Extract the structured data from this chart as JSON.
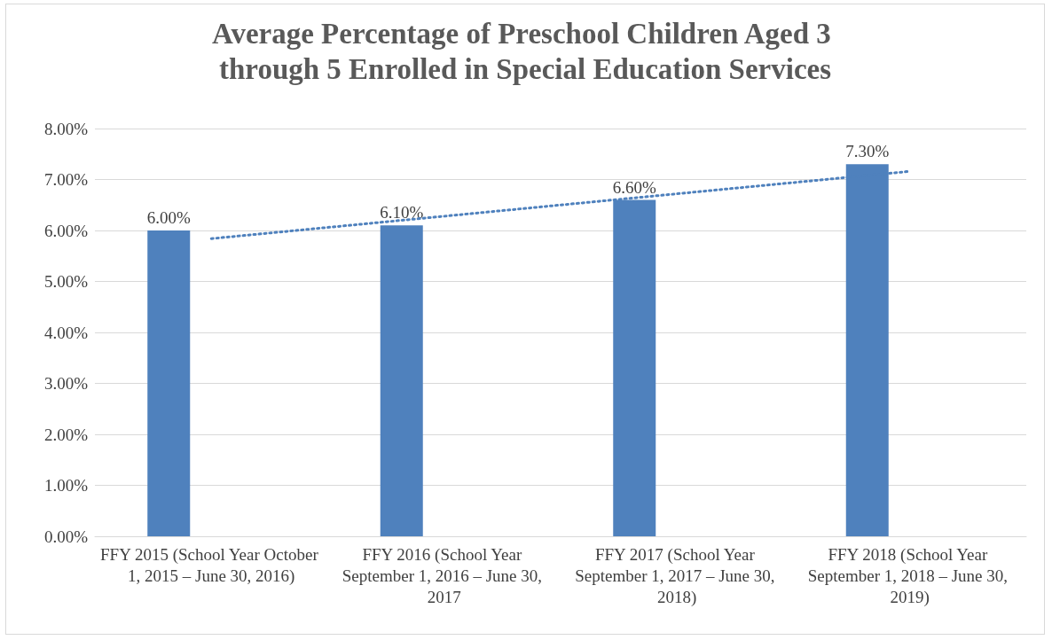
{
  "chart_data": {
    "type": "bar",
    "title": "Average Percentage of Preschool Children Aged 3 through 5 Enrolled in Special Education Services",
    "categories": [
      "FFY 2015 (School Year October 1, 2015 – June 30, 2016)",
      "FFY 2016 (School Year September 1, 2016 – June 30, 2017",
      "FFY 2017 (School Year September 1, 2017 – June 30, 2018)",
      "FFY 2018 (School Year September 1, 2018 – June 30, 2019)"
    ],
    "series": [
      {
        "color": "#4f81bd",
        "values": [
          6.0,
          6.1,
          6.6,
          7.3
        ],
        "value_labels": [
          "6.00%",
          "6.10%",
          "6.60%",
          "7.30%"
        ]
      },
      {
        "type": "line",
        "color": "#4f81bd",
        "values": [
          5.84,
          6.28,
          6.72,
          7.16
        ],
        "line_style": "dotted",
        "marker": "none"
      }
    ],
    "ylim": [
      0,
      8
    ],
    "yticks": [
      {
        "value": 0,
        "label": "0.00%"
      },
      {
        "value": 1,
        "label": "1.00%"
      },
      {
        "value": 2,
        "label": "2.00%"
      },
      {
        "value": 3,
        "label": "3.00%"
      },
      {
        "value": 4,
        "label": "4.00%"
      },
      {
        "value": 5,
        "label": "5.00%"
      },
      {
        "value": 6,
        "label": "6.00%"
      },
      {
        "value": 7,
        "label": "7.00%"
      },
      {
        "value": 8,
        "label": "8.00%"
      }
    ],
    "grid": "y",
    "legend": false
  }
}
